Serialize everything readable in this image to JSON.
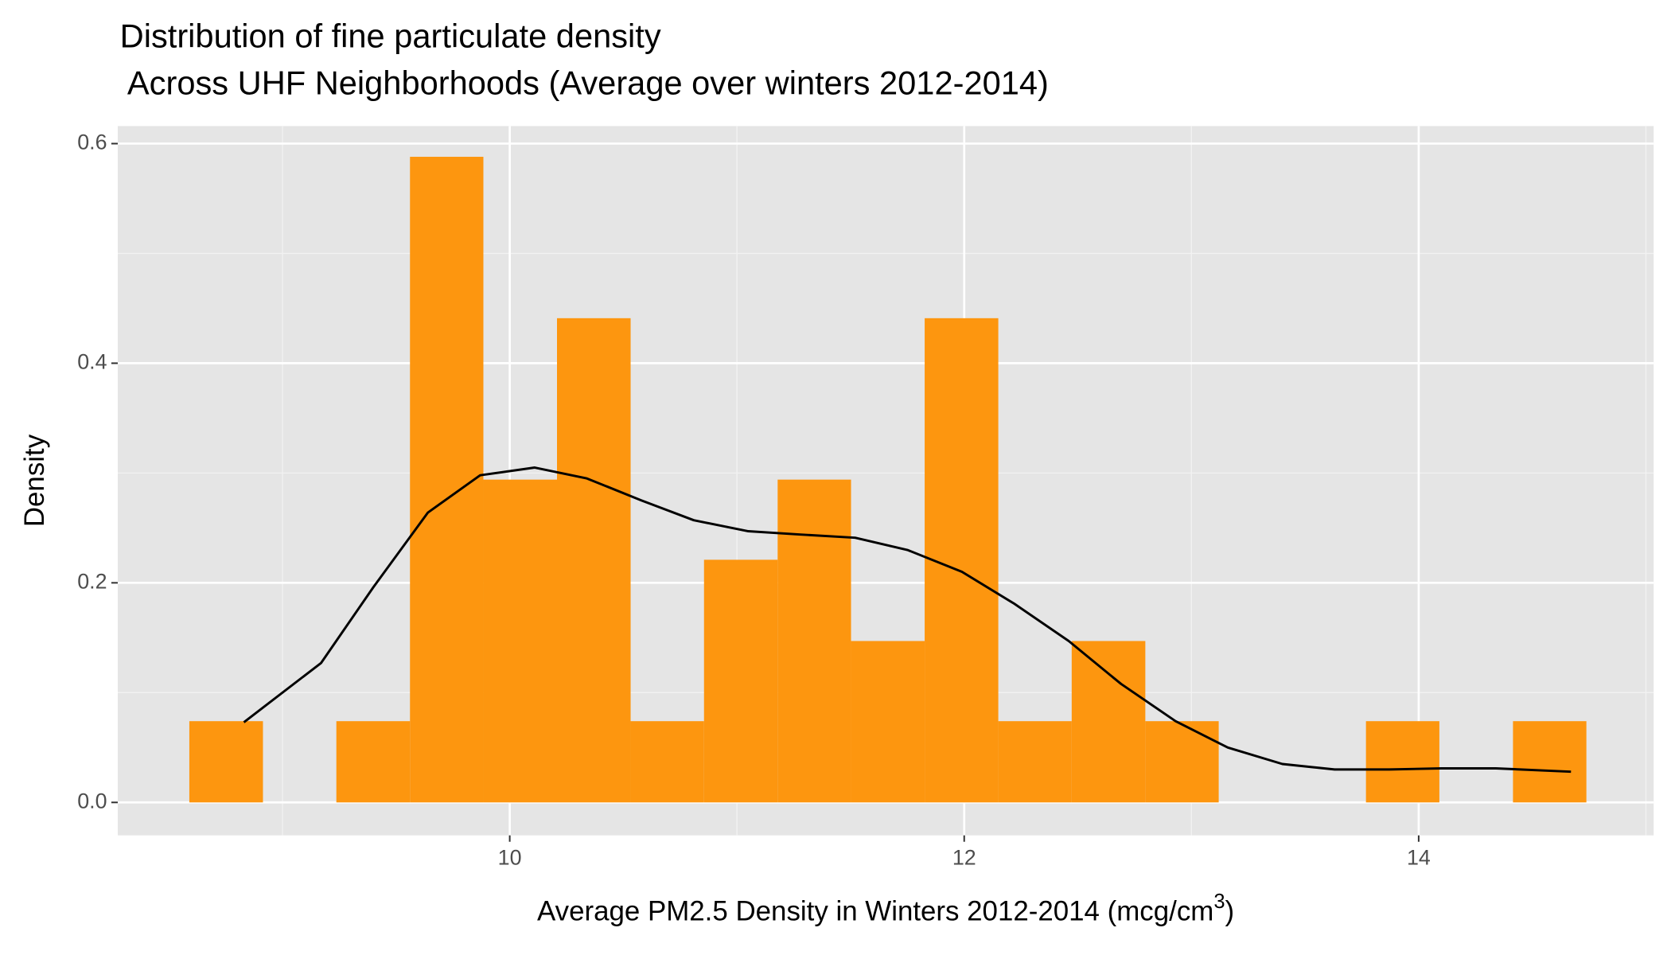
{
  "chart_data": {
    "type": "histogram",
    "title": [
      "Distribution of fine particulate density",
      " Across UHF Neighborhoods (Average over winters 2012-2014)"
    ],
    "xlabel": {
      "text": "Average PM2.5 Density in Winters 2012-2014 (mcg/cm",
      "superscript": "3",
      "suffix": ")"
    },
    "ylabel": "Density",
    "bins": [
      8.59,
      8.914,
      9.237,
      9.561,
      9.884,
      10.208,
      10.532,
      10.855,
      11.179,
      11.502,
      11.826,
      12.15,
      12.473,
      12.797,
      13.12,
      13.444,
      13.768,
      14.091,
      14.415,
      14.738
    ],
    "values": [
      0.074,
      0,
      0.074,
      0.588,
      0.294,
      0.441,
      0.074,
      0.221,
      0.294,
      0.147,
      0.441,
      0.074,
      0.147,
      0.074,
      0,
      0,
      0.074,
      0,
      0.074
    ],
    "color": "#fd960f",
    "density_line": {
      "x": [
        8.83,
        9.17,
        9.4,
        9.64,
        9.87,
        10.11,
        10.34,
        10.58,
        10.81,
        11.05,
        11.28,
        11.52,
        11.75,
        11.99,
        12.22,
        12.46,
        12.69,
        12.93,
        13.16,
        13.4,
        13.63,
        13.87,
        14.1,
        14.34,
        14.67
      ],
      "y": [
        0.073,
        0.127,
        0.196,
        0.264,
        0.298,
        0.305,
        0.295,
        0.275,
        0.257,
        0.247,
        0.244,
        0.241,
        0.23,
        0.21,
        0.181,
        0.147,
        0.108,
        0.074,
        0.05,
        0.035,
        0.03,
        0.03,
        0.031,
        0.031,
        0.028
      ],
      "color": "#000000"
    },
    "xlim": [
      8.275,
      15.034
    ],
    "ylim": [
      -0.03,
      0.616
    ],
    "xticks": [
      10,
      12,
      14
    ],
    "yticks": [
      {
        "value": 0,
        "label": "0.0"
      },
      0.2,
      0.4,
      0.6
    ],
    "xminor": [
      9,
      11,
      13,
      15
    ],
    "yminor": [
      0.1,
      0.3,
      0.5
    ],
    "grid": true
  }
}
